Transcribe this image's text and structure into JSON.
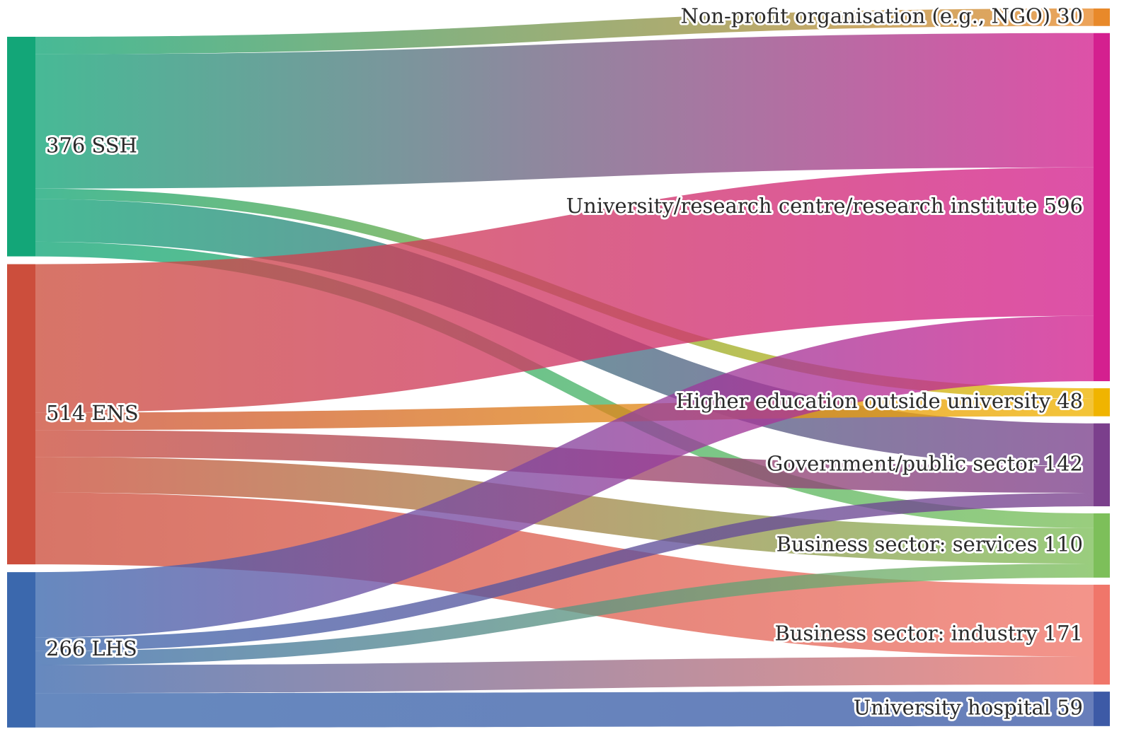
{
  "chart_data": {
    "type": "sankey",
    "sources": [
      {
        "name": "SSH",
        "value": 376,
        "color": "#13a678"
      },
      {
        "name": "ENS",
        "value": 514,
        "color": "#cc4e3c"
      },
      {
        "name": "LHS",
        "value": 266,
        "color": "#3b68ad"
      }
    ],
    "targets": [
      {
        "name": "Non-profit organisation (e.g., NGO)",
        "value": 30,
        "color": "#e8892a"
      },
      {
        "name": "University/research centre/research institute",
        "value": 596,
        "color": "#d4208f"
      },
      {
        "name": "Higher education outside university",
        "value": 48,
        "color": "#f0b400"
      },
      {
        "name": "Government/public sector",
        "value": 142,
        "color": "#7b3f8c"
      },
      {
        "name": "Business sector: services",
        "value": 110,
        "color": "#7dbf5a"
      },
      {
        "name": "Business sector: industry",
        "value": 171,
        "color": "#f0766a"
      },
      {
        "name": "University hospital",
        "value": 59,
        "color": "#3d5aa6"
      }
    ],
    "links": [
      {
        "source": "SSH",
        "target": "Non-profit organisation (e.g., NGO)",
        "value": 30
      },
      {
        "source": "SSH",
        "target": "University/research centre/research institute",
        "value": 230
      },
      {
        "source": "SSH",
        "target": "Higher education outside university",
        "value": 18
      },
      {
        "source": "SSH",
        "target": "Government/public sector",
        "value": 73
      },
      {
        "source": "SSH",
        "target": "Business sector: services",
        "value": 25
      },
      {
        "source": "ENS",
        "target": "University/research centre/research institute",
        "value": 254
      },
      {
        "source": "ENS",
        "target": "Higher education outside university",
        "value": 30
      },
      {
        "source": "ENS",
        "target": "Government/public sector",
        "value": 46
      },
      {
        "source": "ENS",
        "target": "Business sector: services",
        "value": 61
      },
      {
        "source": "ENS",
        "target": "Business sector: industry",
        "value": 123
      },
      {
        "source": "LHS",
        "target": "University/research centre/research institute",
        "value": 112
      },
      {
        "source": "LHS",
        "target": "Government/public sector",
        "value": 23
      },
      {
        "source": "LHS",
        "target": "Business sector: services",
        "value": 24
      },
      {
        "source": "LHS",
        "target": "Business sector: industry",
        "value": 48
      },
      {
        "source": "LHS",
        "target": "University hospital",
        "value": 59
      }
    ]
  }
}
